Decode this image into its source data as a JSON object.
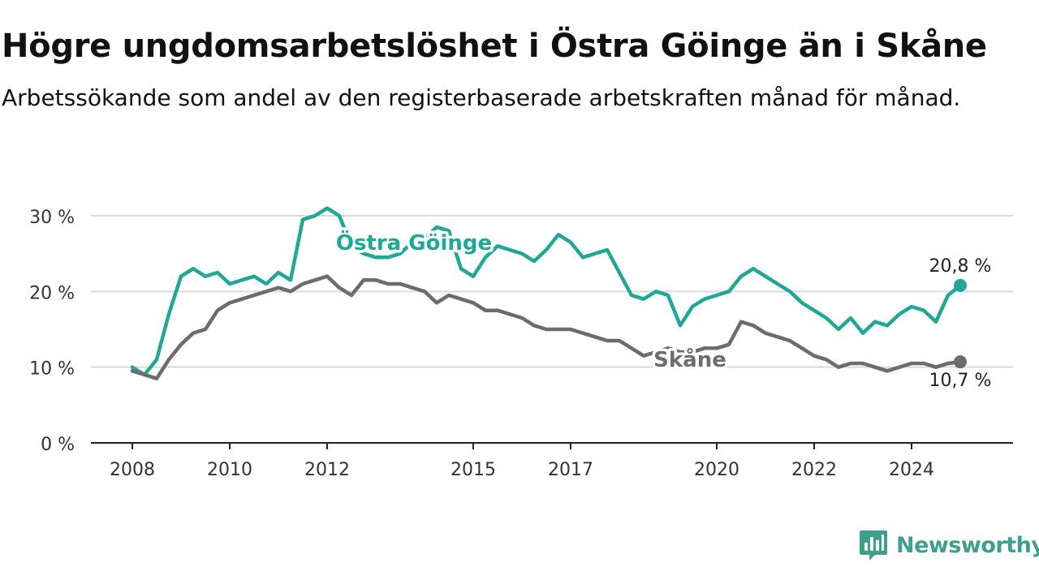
{
  "title": "Högre ungdomsarbetslöshet i Östra Göinge än i Skåne",
  "subtitle": "Arbetssökande som andel av den registerbaserade arbetskraften månad för månad.",
  "brand": {
    "name": "Newsworthy",
    "icon": "newsworthy-logo-icon",
    "color": "#3d9f8d"
  },
  "chart_data": {
    "type": "line",
    "x_unit": "date",
    "y_unit": "%",
    "ylim": [
      0,
      30
    ],
    "y_ticks": [
      0,
      10,
      20,
      30
    ],
    "y_tick_labels": [
      "0 %",
      "10 %",
      "20 %",
      "30 %"
    ],
    "x_ticks": [
      2008,
      2010,
      2012,
      2015,
      2017,
      2020,
      2022,
      2024
    ],
    "x_tick_labels": [
      "2008",
      "2010",
      "2012",
      "2015",
      "2017",
      "2020",
      "2022",
      "2024"
    ],
    "grid": true,
    "series": [
      {
        "name": "Östra Göinge",
        "color": "#1fa898",
        "last_label": "20,8 %",
        "x": [
          "2008-01",
          "2008-04",
          "2008-07",
          "2008-10",
          "2009-01",
          "2009-04",
          "2009-07",
          "2009-10",
          "2010-01",
          "2010-04",
          "2010-07",
          "2010-10",
          "2011-01",
          "2011-04",
          "2011-07",
          "2011-10",
          "2012-01",
          "2012-04",
          "2012-07",
          "2012-10",
          "2013-01",
          "2013-04",
          "2013-07",
          "2013-10",
          "2014-01",
          "2014-04",
          "2014-07",
          "2014-10",
          "2015-01",
          "2015-04",
          "2015-07",
          "2015-10",
          "2016-01",
          "2016-04",
          "2016-07",
          "2016-10",
          "2017-01",
          "2017-04",
          "2017-07",
          "2017-10",
          "2018-01",
          "2018-04",
          "2018-07",
          "2018-10",
          "2019-01",
          "2019-04",
          "2019-07",
          "2019-10",
          "2020-01",
          "2020-04",
          "2020-07",
          "2020-10",
          "2021-01",
          "2021-04",
          "2021-07",
          "2021-10",
          "2022-01",
          "2022-04",
          "2022-07",
          "2022-10",
          "2023-01",
          "2023-04",
          "2023-07",
          "2023-10",
          "2024-01",
          "2024-04",
          "2024-07",
          "2024-10",
          "2025-01"
        ],
        "values": [
          10.0,
          9.0,
          11.0,
          17.0,
          22.0,
          23.0,
          22.0,
          22.5,
          21.0,
          21.5,
          22.0,
          21.0,
          22.5,
          21.5,
          29.5,
          30.0,
          31.0,
          30.0,
          26.0,
          25.0,
          24.5,
          24.5,
          25.0,
          26.5,
          27.0,
          28.5,
          28.0,
          23.0,
          22.0,
          24.5,
          26.0,
          25.5,
          25.0,
          24.0,
          25.5,
          27.5,
          26.5,
          24.5,
          25.0,
          25.5,
          22.5,
          19.5,
          19.0,
          20.0,
          19.5,
          15.5,
          18.0,
          19.0,
          19.5,
          20.0,
          22.0,
          23.0,
          22.0,
          21.0,
          20.0,
          18.5,
          17.5,
          16.5,
          15.0,
          16.5,
          14.5,
          16.0,
          15.5,
          17.0,
          18.0,
          17.5,
          16.0,
          19.5,
          20.8
        ]
      },
      {
        "name": "Skåne",
        "color": "#6c6b70",
        "last_label": "10,7 %",
        "x": [
          "2008-01",
          "2008-04",
          "2008-07",
          "2008-10",
          "2009-01",
          "2009-04",
          "2009-07",
          "2009-10",
          "2010-01",
          "2010-04",
          "2010-07",
          "2010-10",
          "2011-01",
          "2011-04",
          "2011-07",
          "2011-10",
          "2012-01",
          "2012-04",
          "2012-07",
          "2012-10",
          "2013-01",
          "2013-04",
          "2013-07",
          "2013-10",
          "2014-01",
          "2014-04",
          "2014-07",
          "2014-10",
          "2015-01",
          "2015-04",
          "2015-07",
          "2015-10",
          "2016-01",
          "2016-04",
          "2016-07",
          "2016-10",
          "2017-01",
          "2017-04",
          "2017-07",
          "2017-10",
          "2018-01",
          "2018-04",
          "2018-07",
          "2018-10",
          "2019-01",
          "2019-04",
          "2019-07",
          "2019-10",
          "2020-01",
          "2020-04",
          "2020-07",
          "2020-10",
          "2021-01",
          "2021-04",
          "2021-07",
          "2021-10",
          "2022-01",
          "2022-04",
          "2022-07",
          "2022-10",
          "2023-01",
          "2023-04",
          "2023-07",
          "2023-10",
          "2024-01",
          "2024-04",
          "2024-07",
          "2024-10",
          "2025-01"
        ],
        "values": [
          9.5,
          9.0,
          8.5,
          11.0,
          13.0,
          14.5,
          15.0,
          17.5,
          18.5,
          19.0,
          19.5,
          20.0,
          20.5,
          20.0,
          21.0,
          21.5,
          22.0,
          20.5,
          19.5,
          21.5,
          21.5,
          21.0,
          21.0,
          20.5,
          20.0,
          18.5,
          19.5,
          19.0,
          18.5,
          17.5,
          17.5,
          17.0,
          16.5,
          15.5,
          15.0,
          15.0,
          15.0,
          14.5,
          14.0,
          13.5,
          13.5,
          12.5,
          11.5,
          12.0,
          12.5,
          12.0,
          12.0,
          12.5,
          12.5,
          13.0,
          16.0,
          15.5,
          14.5,
          14.0,
          13.5,
          12.5,
          11.5,
          11.0,
          10.0,
          10.5,
          10.5,
          10.0,
          9.5,
          10.0,
          10.5,
          10.5,
          10.0,
          10.5,
          10.7
        ]
      }
    ]
  }
}
